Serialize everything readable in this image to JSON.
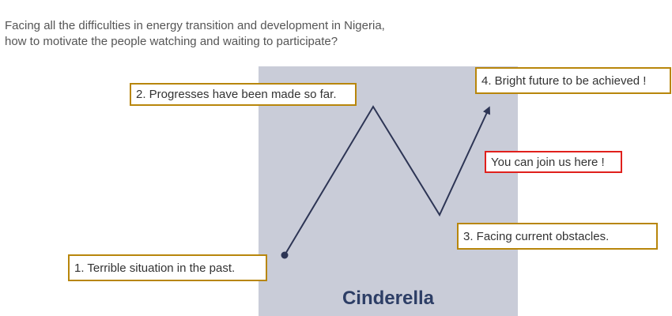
{
  "question": {
    "line1": "Facing all the difficulties in energy transition and development in Nigeria,",
    "line2": "how to motivate the people watching and waiting to participate?"
  },
  "panel": {
    "title": "Cinderella"
  },
  "stages": [
    {
      "label": "1. Terrible situation in the past."
    },
    {
      "label": "2. Progresses have been made so far."
    },
    {
      "label": "3. Facing current obstacles."
    },
    {
      "label": "4. Bright future to be achieved !"
    }
  ],
  "call_to_action": "You can join us here !",
  "colors": {
    "panel": "#c9ccd8",
    "line": "#2d3555",
    "box_border": "#b8860b",
    "cta_border": "#e0201c",
    "title": "#2d3e66"
  }
}
